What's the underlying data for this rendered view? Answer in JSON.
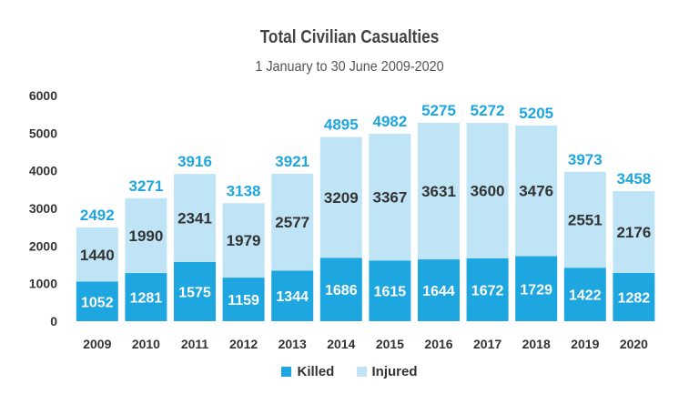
{
  "chart_data": {
    "type": "bar",
    "stacked": true,
    "title": "Total Civilian Casualties",
    "subtitle": "1 January to 30 June 2009-2020",
    "categories": [
      "2009",
      "2010",
      "2011",
      "2012",
      "2013",
      "2014",
      "2015",
      "2016",
      "2017",
      "2018",
      "2019",
      "2020"
    ],
    "series": [
      {
        "name": "Killed",
        "color": "#1ea6e0",
        "values": [
          1052,
          1281,
          1575,
          1159,
          1344,
          1686,
          1615,
          1644,
          1672,
          1729,
          1422,
          1282
        ]
      },
      {
        "name": "Injured",
        "color": "#bfe4f6",
        "values": [
          1440,
          1990,
          2341,
          1979,
          2577,
          3209,
          3367,
          3631,
          3600,
          3476,
          2551,
          2176
        ]
      }
    ],
    "totals": [
      2492,
      3271,
      3916,
      3138,
      3921,
      4895,
      4982,
      5275,
      5272,
      5205,
      3973,
      3458
    ],
    "yticks": [
      0,
      1000,
      2000,
      3000,
      4000,
      5000,
      6000
    ],
    "ylim": [
      0,
      6000
    ],
    "legend_position": "bottom"
  }
}
